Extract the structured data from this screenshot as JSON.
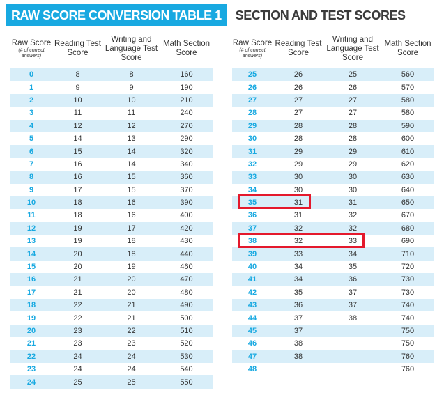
{
  "title": "RAW SCORE CONVERSION TABLE 1",
  "subtitle": "SECTION AND TEST SCORES",
  "columns": {
    "raw": "Raw Score",
    "raw_note": "(# of correct answers)",
    "reading": "Reading Test Score",
    "writing": "Writing and Language Test Score",
    "math": "Math Section Score"
  },
  "rows": [
    {
      "raw": "0",
      "reading": "8",
      "writing": "8",
      "math": "160"
    },
    {
      "raw": "1",
      "reading": "9",
      "writing": "9",
      "math": "190"
    },
    {
      "raw": "2",
      "reading": "10",
      "writing": "10",
      "math": "210"
    },
    {
      "raw": "3",
      "reading": "11",
      "writing": "11",
      "math": "240"
    },
    {
      "raw": "4",
      "reading": "12",
      "writing": "12",
      "math": "270"
    },
    {
      "raw": "5",
      "reading": "14",
      "writing": "13",
      "math": "290"
    },
    {
      "raw": "6",
      "reading": "15",
      "writing": "14",
      "math": "320"
    },
    {
      "raw": "7",
      "reading": "16",
      "writing": "14",
      "math": "340"
    },
    {
      "raw": "8",
      "reading": "16",
      "writing": "15",
      "math": "360"
    },
    {
      "raw": "9",
      "reading": "17",
      "writing": "15",
      "math": "370"
    },
    {
      "raw": "10",
      "reading": "18",
      "writing": "16",
      "math": "390"
    },
    {
      "raw": "11",
      "reading": "18",
      "writing": "16",
      "math": "400"
    },
    {
      "raw": "12",
      "reading": "19",
      "writing": "17",
      "math": "420"
    },
    {
      "raw": "13",
      "reading": "19",
      "writing": "18",
      "math": "430"
    },
    {
      "raw": "14",
      "reading": "20",
      "writing": "18",
      "math": "440"
    },
    {
      "raw": "15",
      "reading": "20",
      "writing": "19",
      "math": "460"
    },
    {
      "raw": "16",
      "reading": "21",
      "writing": "20",
      "math": "470"
    },
    {
      "raw": "17",
      "reading": "21",
      "writing": "20",
      "math": "480"
    },
    {
      "raw": "18",
      "reading": "22",
      "writing": "21",
      "math": "490"
    },
    {
      "raw": "19",
      "reading": "22",
      "writing": "21",
      "math": "500"
    },
    {
      "raw": "20",
      "reading": "23",
      "writing": "22",
      "math": "510"
    },
    {
      "raw": "21",
      "reading": "23",
      "writing": "23",
      "math": "520"
    },
    {
      "raw": "22",
      "reading": "24",
      "writing": "24",
      "math": "530"
    },
    {
      "raw": "23",
      "reading": "24",
      "writing": "24",
      "math": "540"
    },
    {
      "raw": "24",
      "reading": "25",
      "writing": "25",
      "math": "550"
    },
    {
      "raw": "25",
      "reading": "26",
      "writing": "25",
      "math": "560"
    },
    {
      "raw": "26",
      "reading": "26",
      "writing": "26",
      "math": "570"
    },
    {
      "raw": "27",
      "reading": "27",
      "writing": "27",
      "math": "580"
    },
    {
      "raw": "28",
      "reading": "27",
      "writing": "27",
      "math": "580"
    },
    {
      "raw": "29",
      "reading": "28",
      "writing": "28",
      "math": "590"
    },
    {
      "raw": "30",
      "reading": "28",
      "writing": "28",
      "math": "600"
    },
    {
      "raw": "31",
      "reading": "29",
      "writing": "29",
      "math": "610"
    },
    {
      "raw": "32",
      "reading": "29",
      "writing": "29",
      "math": "620"
    },
    {
      "raw": "33",
      "reading": "30",
      "writing": "30",
      "math": "630"
    },
    {
      "raw": "34",
      "reading": "30",
      "writing": "30",
      "math": "640"
    },
    {
      "raw": "35",
      "reading": "31",
      "writing": "31",
      "math": "650"
    },
    {
      "raw": "36",
      "reading": "31",
      "writing": "32",
      "math": "670"
    },
    {
      "raw": "37",
      "reading": "32",
      "writing": "32",
      "math": "680"
    },
    {
      "raw": "38",
      "reading": "32",
      "writing": "33",
      "math": "690"
    },
    {
      "raw": "39",
      "reading": "33",
      "writing": "34",
      "math": "710"
    },
    {
      "raw": "40",
      "reading": "34",
      "writing": "35",
      "math": "720"
    },
    {
      "raw": "41",
      "reading": "34",
      "writing": "36",
      "math": "730"
    },
    {
      "raw": "42",
      "reading": "35",
      "writing": "37",
      "math": "730"
    },
    {
      "raw": "43",
      "reading": "36",
      "writing": "37",
      "math": "740"
    },
    {
      "raw": "44",
      "reading": "37",
      "writing": "38",
      "math": "740"
    },
    {
      "raw": "45",
      "reading": "37",
      "writing": "",
      "math": "750"
    },
    {
      "raw": "46",
      "reading": "38",
      "writing": "",
      "math": "750"
    },
    {
      "raw": "47",
      "reading": "38",
      "writing": "",
      "math": "760"
    },
    {
      "raw": "48",
      "reading": "",
      "writing": "",
      "math": "760"
    }
  ],
  "highlight_color": "#e4192c",
  "accent_color": "#18a9e1"
}
